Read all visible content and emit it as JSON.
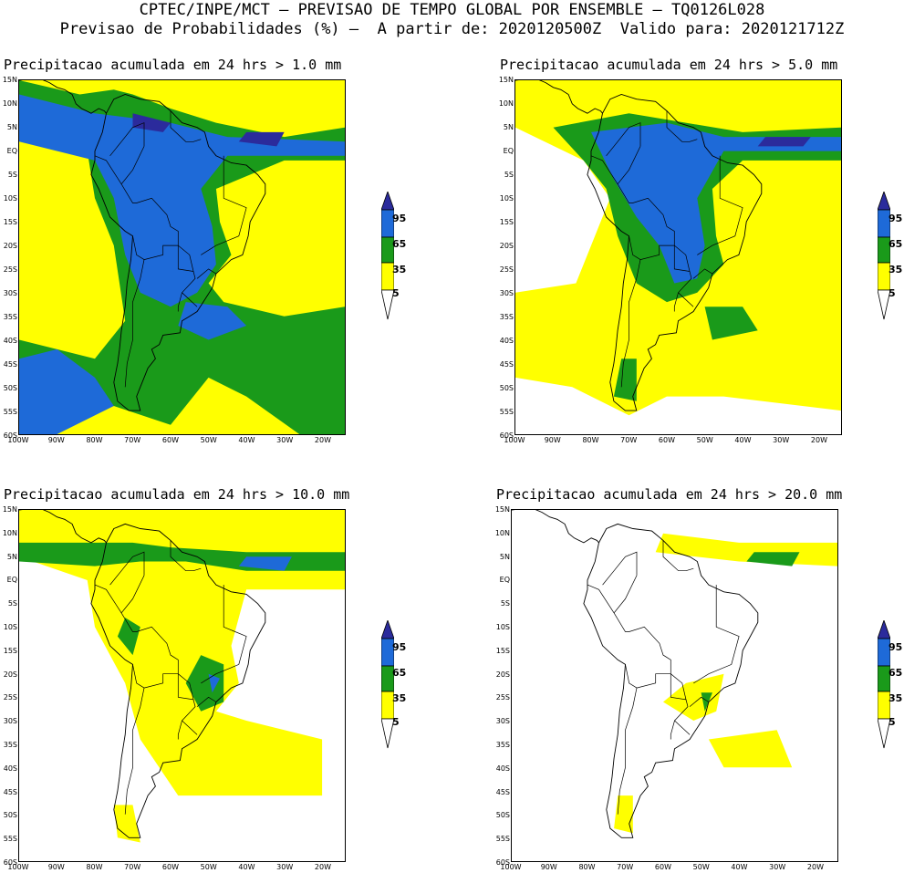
{
  "header": {
    "line1": "CPTEC/INPE/MCT — PREVISAO DE TEMPO GLOBAL POR ENSEMBLE — TQ0126L028",
    "line2": "Previsao de Probabilidades (%) —  A partir de: 2020120500Z  Valido para: 2020121712Z"
  },
  "axes": {
    "lat_labels": [
      "15N",
      "10N",
      "5N",
      "EQ",
      "5S",
      "10S",
      "15S",
      "20S",
      "25S",
      "30S",
      "35S",
      "40S",
      "45S",
      "50S",
      "55S",
      "60S"
    ],
    "lon_labels": [
      "100W",
      "90W",
      "80W",
      "70W",
      "60W",
      "50W",
      "40W",
      "30W",
      "20W"
    ]
  },
  "legend": {
    "levels": [
      "95",
      "65",
      "35",
      "5"
    ],
    "colors": {
      "yellow": "#ffff00",
      "green": "#1a9a1a",
      "blue": "#1e6ad8",
      "navy": "#2b2b9c"
    }
  },
  "panels": [
    {
      "title": "Precipitacao acumulada em 24 hrs > 1.0 mm"
    },
    {
      "title": "Precipitacao acumulada em 24 hrs > 5.0 mm"
    },
    {
      "title": "Precipitacao acumulada em 24 hrs > 10.0 mm"
    },
    {
      "title": "Precipitacao acumulada em 24 hrs > 20.0 mm"
    }
  ]
}
